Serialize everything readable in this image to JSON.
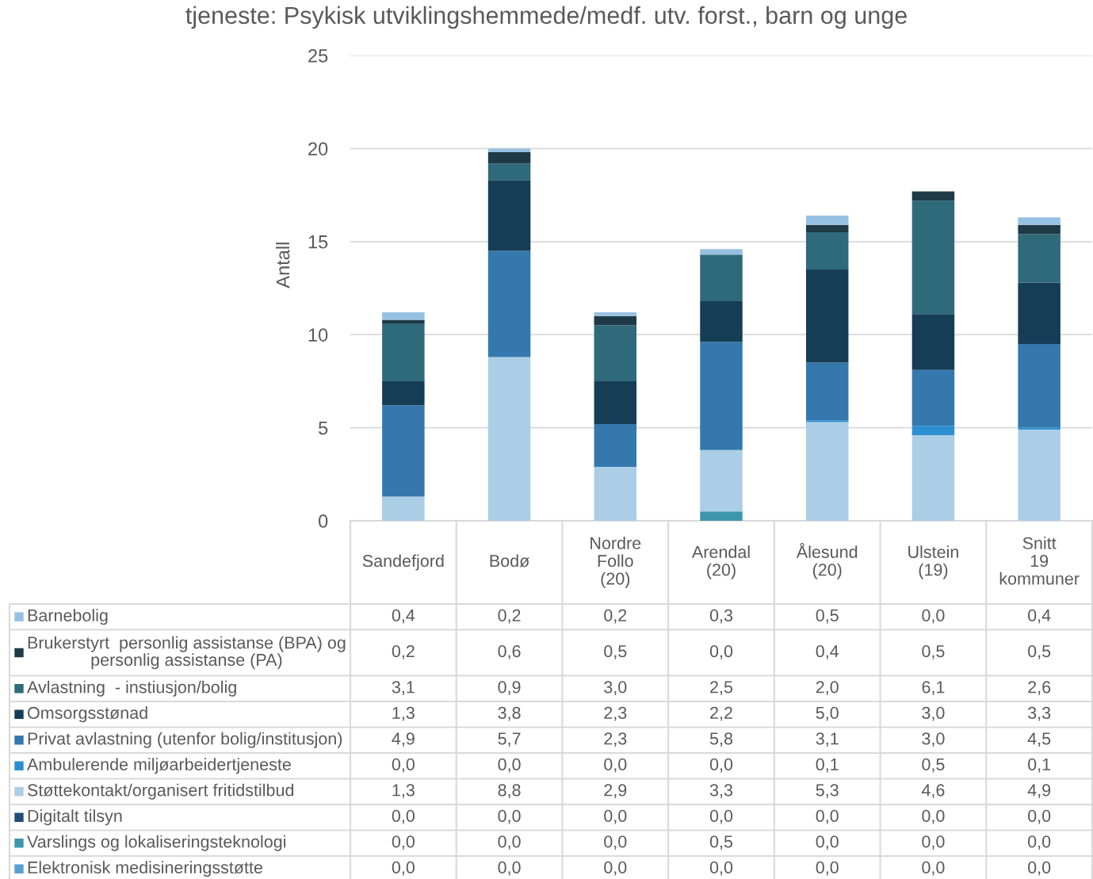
{
  "chart_data": {
    "type": "bar",
    "stacked": true,
    "title": "tjeneste: Psykisk utviklingshemmede/medf. utv. forst., barn og unge",
    "ylabel": "Antall",
    "categories": [
      "Sandefjord",
      "Bodø",
      "Nordre Follo (20)",
      "Arendal (20)",
      "Ålesund (20)",
      "Ulstein (19)",
      "Snitt 19 kommuner"
    ],
    "series": [
      {
        "name": "Elektronisk medisineringsstøtte",
        "color": "#5a9fd4",
        "values": [
          0.0,
          0.0,
          0.0,
          0.0,
          0.0,
          0.0,
          0.0
        ],
        "value_labels": [
          "0,0",
          "0,0",
          "0,0",
          "0,0",
          "0,0",
          "0,0",
          "0,0"
        ]
      },
      {
        "name": "Varslings og lokaliseringsteknologi",
        "color": "#3d96ac",
        "values": [
          0.0,
          0.0,
          0.0,
          0.5,
          0.0,
          0.0,
          0.0
        ],
        "value_labels": [
          "0,0",
          "0,0",
          "0,0",
          "0,5",
          "0,0",
          "0,0",
          "0,0"
        ]
      },
      {
        "name": "Digitalt tilsyn",
        "color": "#1f4e79",
        "values": [
          0.0,
          0.0,
          0.0,
          0.0,
          0.0,
          0.0,
          0.0
        ],
        "value_labels": [
          "0,0",
          "0,0",
          "0,0",
          "0,0",
          "0,0",
          "0,0",
          "0,0"
        ]
      },
      {
        "name": "Støttekontakt/organisert fritidstilbud",
        "color": "#abcde6",
        "values": [
          1.3,
          8.8,
          2.9,
          3.3,
          5.3,
          4.6,
          4.9
        ],
        "value_labels": [
          "1,3",
          "8,8",
          "2,9",
          "3,3",
          "5,3",
          "4,6",
          "4,9"
        ]
      },
      {
        "name": "Ambulerende miljøarbeidertjeneste",
        "color": "#2b8fd1",
        "values": [
          0.0,
          0.0,
          0.0,
          0.0,
          0.1,
          0.5,
          0.1
        ],
        "value_labels": [
          "0,0",
          "0,0",
          "0,0",
          "0,0",
          "0,1",
          "0,5",
          "0,1"
        ]
      },
      {
        "name": "Privat avlastning (utenfor bolig/institusjon)",
        "color": "#3478ae",
        "values": [
          4.9,
          5.7,
          2.3,
          5.8,
          3.1,
          3.0,
          4.5
        ],
        "value_labels": [
          "4,9",
          "5,7",
          "2,3",
          "5,8",
          "3,1",
          "3,0",
          "4,5"
        ]
      },
      {
        "name": "Omsorgsstønad",
        "color": "#153d56",
        "values": [
          1.3,
          3.8,
          2.3,
          2.2,
          5.0,
          3.0,
          3.3
        ],
        "value_labels": [
          "1,3",
          "3,8",
          "2,3",
          "2,2",
          "5,0",
          "3,0",
          "3,3"
        ]
      },
      {
        "name": "Avlastning  - instiusjon/bolig",
        "color": "#2f6a7b",
        "values": [
          3.1,
          0.9,
          3.0,
          2.5,
          2.0,
          6.1,
          2.6
        ],
        "value_labels": [
          "3,1",
          "0,9",
          "3,0",
          "2,5",
          "2,0",
          "6,1",
          "2,6"
        ]
      },
      {
        "name": "Brukerstyrt  personlig assistanse (BPA) og personlig assistanse (PA)",
        "color": "#1e3a46",
        "values": [
          0.2,
          0.6,
          0.5,
          0.0,
          0.4,
          0.5,
          0.5
        ],
        "value_labels": [
          "0,2",
          "0,6",
          "0,5",
          "0,0",
          "0,4",
          "0,5",
          "0,5"
        ]
      },
      {
        "name": "Barnebolig",
        "color": "#97c1e2",
        "values": [
          0.4,
          0.2,
          0.2,
          0.3,
          0.5,
          0.0,
          0.4
        ],
        "value_labels": [
          "0,4",
          "0,2",
          "0,2",
          "0,3",
          "0,5",
          "0,0",
          "0,4"
        ]
      }
    ],
    "ylim": [
      0,
      25
    ],
    "yticks": [
      0,
      5,
      10,
      15,
      20,
      25
    ],
    "grid": "y",
    "legend": "bottom"
  }
}
